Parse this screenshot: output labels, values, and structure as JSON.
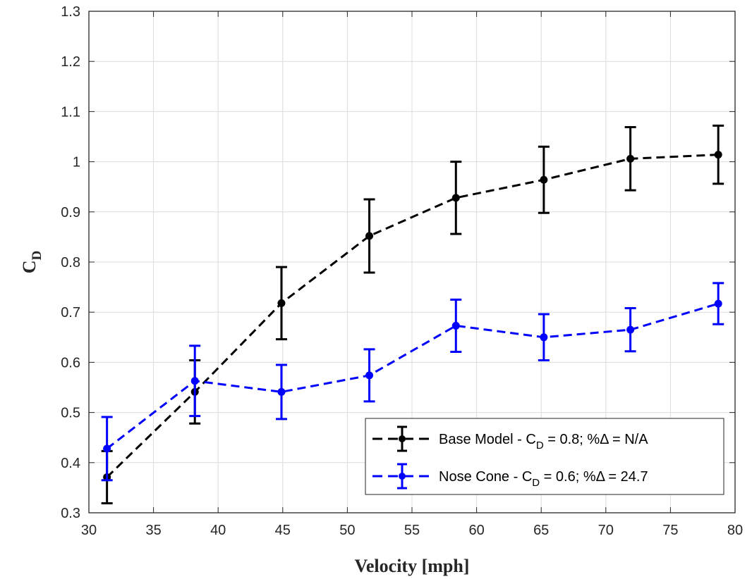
{
  "chart_data": {
    "type": "line",
    "xlabel": "Velocity [mph]",
    "ylabel_main": "C",
    "ylabel_sub": "D",
    "xlim": [
      30,
      80
    ],
    "ylim": [
      0.3,
      1.3
    ],
    "x_ticks": [
      30,
      35,
      40,
      45,
      50,
      55,
      60,
      65,
      70,
      75,
      80
    ],
    "y_ticks": [
      0.3,
      0.4,
      0.5,
      0.6,
      0.7,
      0.8,
      0.9,
      1,
      1.1,
      1.2,
      1.3
    ],
    "x_tick_labels": [
      "30",
      "35",
      "40",
      "45",
      "50",
      "55",
      "60",
      "65",
      "70",
      "75",
      "80"
    ],
    "y_tick_labels": [
      "0.3",
      "0.4",
      "0.5",
      "0.6",
      "0.7",
      "0.8",
      "0.9",
      "1",
      "1.1",
      "1.2",
      "1.3"
    ],
    "grid": true,
    "legend_position": "bottom-right",
    "series": [
      {
        "name": "Base Model",
        "legend": {
          "prefix": "Base Model - C",
          "sub": "D",
          "suffix": " = 0.8; %Δ = N/A"
        },
        "color": "#000000",
        "style": "dashed",
        "x": [
          31.4,
          38.2,
          44.9,
          51.7,
          58.4,
          65.2,
          71.9,
          78.7
        ],
        "y": [
          0.371,
          0.541,
          0.718,
          0.852,
          0.928,
          0.964,
          1.006,
          1.014
        ],
        "err": [
          0.052,
          0.063,
          0.072,
          0.073,
          0.072,
          0.066,
          0.063,
          0.058
        ]
      },
      {
        "name": "Nose Cone",
        "legend": {
          "prefix": "Nose Cone - C",
          "sub": "D",
          "suffix": " = 0.6; %Δ = 24.7"
        },
        "color": "#0000ff",
        "style": "dashed",
        "x": [
          31.4,
          38.2,
          44.9,
          51.7,
          58.4,
          65.2,
          71.9,
          78.7
        ],
        "y": [
          0.428,
          0.563,
          0.541,
          0.574,
          0.673,
          0.65,
          0.665,
          0.717
        ],
        "err": [
          0.063,
          0.07,
          0.054,
          0.052,
          0.052,
          0.046,
          0.043,
          0.041
        ]
      }
    ]
  }
}
